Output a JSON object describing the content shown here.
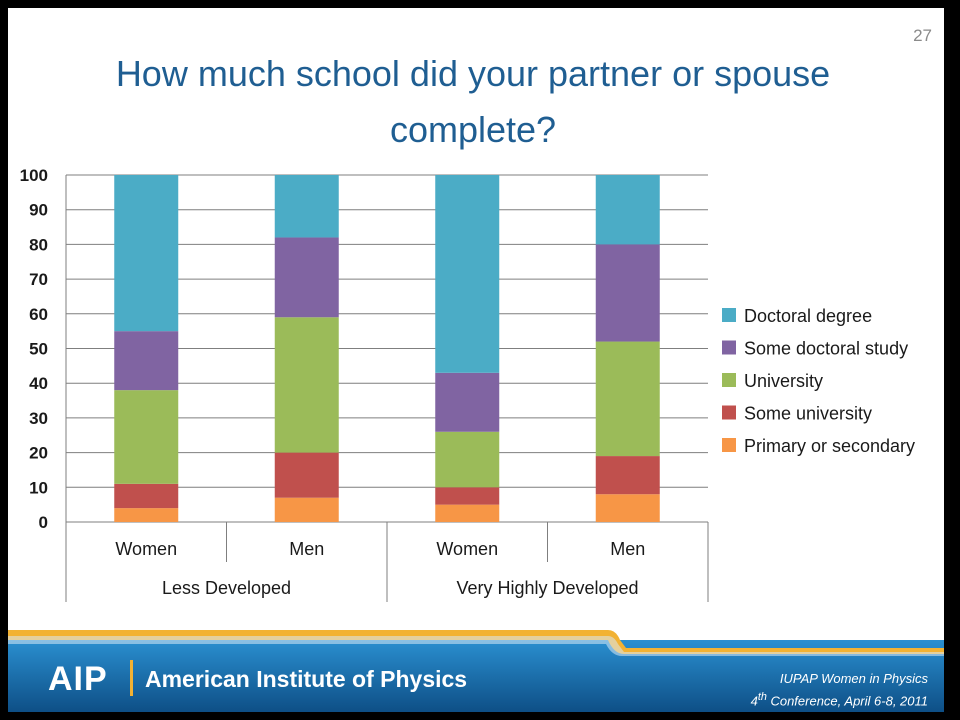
{
  "slide": {
    "number": "27",
    "title": "How much school did your partner or spouse complete?"
  },
  "colors": {
    "title": "#1f5e92",
    "doctoral": "#4bacc6",
    "some_doctoral": "#8064a2",
    "university": "#9bbb59",
    "some_university": "#c0504d",
    "primary": "#f79646",
    "footer_blue": "#1c7fbf",
    "footer_gold": "#f2b233"
  },
  "footer": {
    "logo": "AIP",
    "org": "American Institute of Physics",
    "conference_line1": "IUPAP Women in Physics",
    "conference_line2_ordinal": "4",
    "conference_line2_sup": "th",
    "conference_line2_rest": " Conference, April 6-8, 2011"
  },
  "chart_data": {
    "type": "bar",
    "stacked": true,
    "title": "",
    "xlabel": "",
    "ylabel": "",
    "ylim": [
      0,
      100
    ],
    "yticks": [
      0,
      10,
      20,
      30,
      40,
      50,
      60,
      70,
      80,
      90,
      100
    ],
    "grid": true,
    "legend_position": "right",
    "categories": [
      "Women",
      "Men",
      "Women",
      "Men"
    ],
    "groups": [
      {
        "label": "Less Developed",
        "categories": [
          "Women",
          "Men"
        ]
      },
      {
        "label": "Very Highly Developed",
        "categories": [
          "Women",
          "Men"
        ]
      }
    ],
    "series": [
      {
        "name": "Primary or secondary",
        "color": "#f79646",
        "values": [
          4,
          7,
          5,
          8
        ]
      },
      {
        "name": "Some university",
        "color": "#c0504d",
        "values": [
          7,
          13,
          5,
          11
        ]
      },
      {
        "name": "University",
        "color": "#9bbb59",
        "values": [
          27,
          39,
          16,
          33
        ]
      },
      {
        "name": "Some doctoral study",
        "color": "#8064a2",
        "values": [
          17,
          23,
          17,
          28
        ]
      },
      {
        "name": "Doctoral degree",
        "color": "#4bacc6",
        "values": [
          45,
          18,
          57,
          20
        ]
      }
    ],
    "legend_order": [
      "Doctoral degree",
      "Some doctoral study",
      "University",
      "Some university",
      "Primary or secondary"
    ]
  }
}
